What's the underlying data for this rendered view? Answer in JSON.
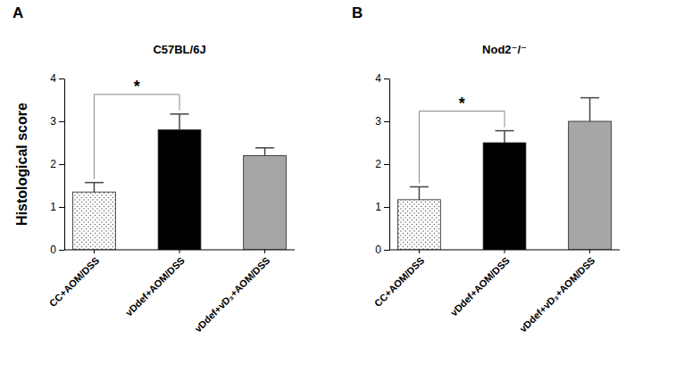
{
  "chart_data": [
    {
      "type": "bar",
      "panel": "A",
      "title": "C57BL/6J",
      "y_label": "Histological score",
      "categories": [
        "CC+AOM/DSS",
        "vDdef+AOM/DSS",
        "vDdef+vD₃+AOM/DSS"
      ],
      "values": [
        1.35,
        2.8,
        2.2
      ],
      "errors": [
        0.22,
        0.37,
        0.18
      ],
      "colors": [
        "#ffffff",
        "#000000",
        "#a6a6a6"
      ],
      "ylim": [
        0,
        4
      ],
      "yticks": [
        0,
        1,
        2,
        3,
        4
      ],
      "grid": false,
      "annotations": [
        {
          "text": "*",
          "between": [
            "CC+AOM/DSS",
            "vDdef+AOM/DSS"
          ]
        }
      ]
    },
    {
      "type": "bar",
      "panel": "B",
      "title": "Nod2⁻/⁻",
      "categories": [
        "CC+AOM/DSS",
        "vDdef+AOM/DSS",
        "vDdef+vD₃+AOM/DSS"
      ],
      "values": [
        1.17,
        2.5,
        3.0
      ],
      "errors": [
        0.3,
        0.28,
        0.55
      ],
      "colors": [
        "#ffffff",
        "#000000",
        "#a6a6a6"
      ],
      "ylim": [
        0,
        4
      ],
      "yticks": [
        0,
        1,
        2,
        3,
        4
      ],
      "grid": false,
      "annotations": [
        {
          "text": "*",
          "between": [
            "CC+AOM/DSS",
            "vDdef+AOM/DSS"
          ]
        }
      ]
    }
  ]
}
